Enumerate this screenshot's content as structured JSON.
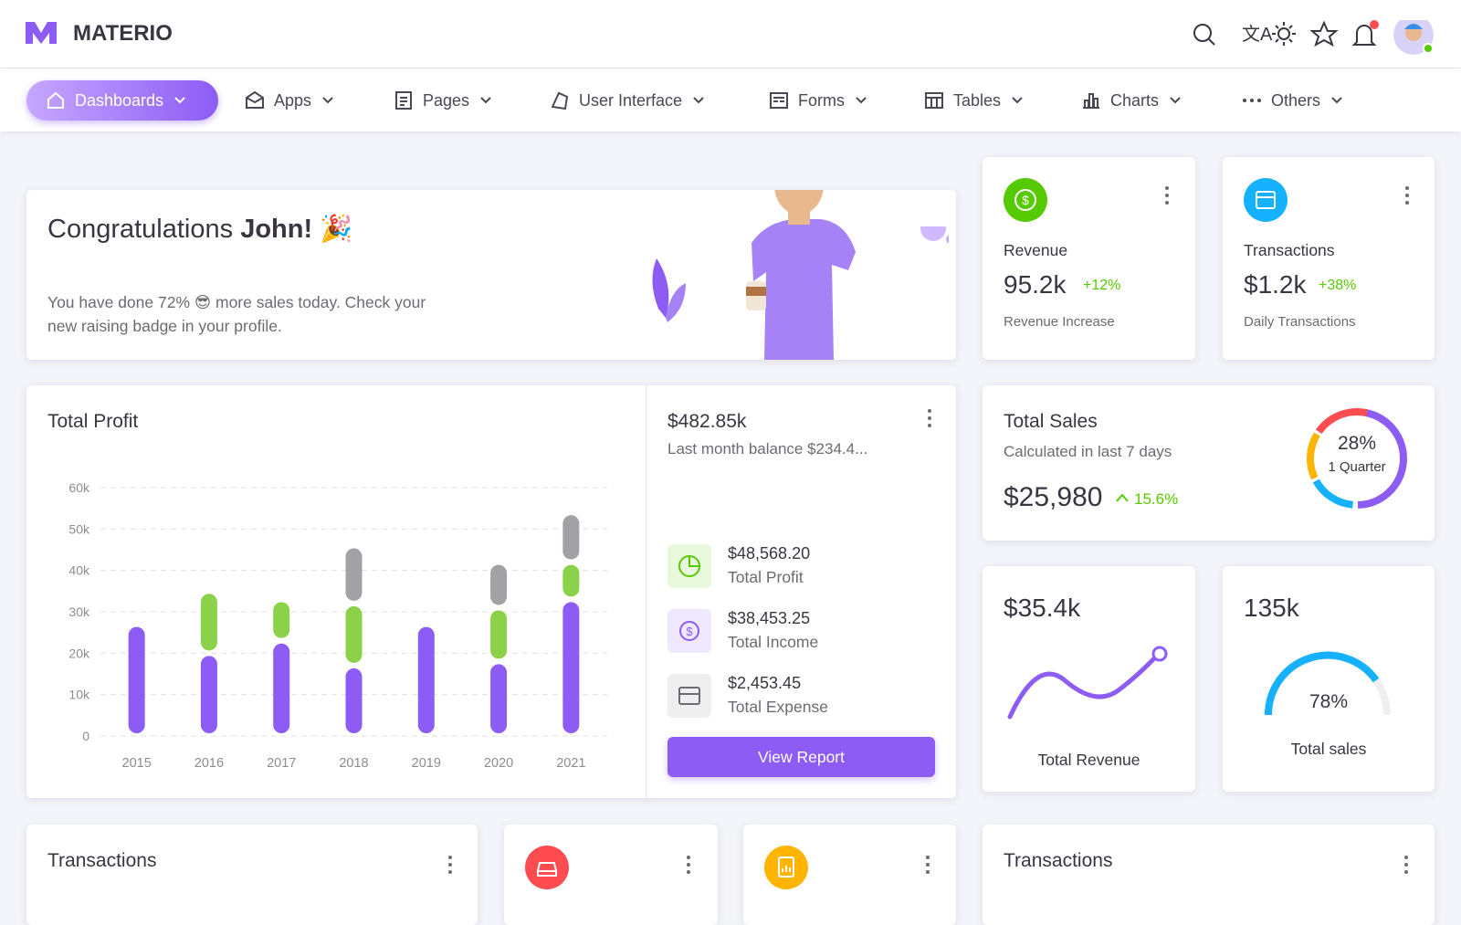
{
  "brand": "MATERIO",
  "nav": [
    "Dashboards",
    "Apps",
    "Pages",
    "User Interface",
    "Forms",
    "Tables",
    "Charts",
    "Others"
  ],
  "welcome": {
    "title_prefix": "Congratulations",
    "title_name": "John!",
    "text": "You have done 72% 😎 more sales today. Check your new raising badge in your profile."
  },
  "stat_cards": [
    {
      "title": "Revenue",
      "value": "95.2k",
      "change": "+12%",
      "subtitle": "Revenue Increase"
    },
    {
      "title": "Transactions",
      "value": "$1.2k",
      "change": "+38%",
      "subtitle": "Daily Transactions"
    }
  ],
  "total_profit": {
    "title": "Total Profit",
    "chart": {
      "type": "bar",
      "stacked": true,
      "categories": [
        "2015",
        "2016",
        "2017",
        "2018",
        "2019",
        "2020",
        "2021"
      ],
      "series": [
        {
          "color": "#8c5cf5",
          "values": [
            27,
            20,
            23,
            17,
            27,
            18,
            33
          ]
        },
        {
          "color": "#8bd14a",
          "values": [
            0,
            15,
            10,
            15,
            0,
            13,
            9
          ]
        },
        {
          "color": "#a1a1a6",
          "values": [
            0,
            0,
            0,
            14,
            0,
            11,
            12
          ]
        }
      ],
      "ylim": [
        0,
        60
      ],
      "yticks": [
        0,
        {
          "value": 10,
          "label": "10k"
        },
        {
          "value": 20,
          "label": "20k"
        },
        {
          "value": 30,
          "label": "30k"
        },
        {
          "value": 40,
          "label": "40k"
        },
        {
          "value": 50,
          "label": "50k"
        },
        {
          "value": 60,
          "label": "60k"
        }
      ],
      "grid": true
    },
    "balance": "$482.85k",
    "balance_note": "Last month balance $234.4...",
    "items": [
      {
        "amount": "$48,568.20",
        "label": "Total Profit"
      },
      {
        "amount": "$38,453.25",
        "label": "Total Income"
      },
      {
        "amount": "$2,453.45",
        "label": "Total Expense"
      }
    ],
    "button": "View Report"
  },
  "total_sales": {
    "title": "Total Sales",
    "subtitle": "Calculated in last 7 days",
    "value": "$25,980",
    "change": "15.6%",
    "donut_value": "28%",
    "donut_label": "1 Quarter"
  },
  "revenue_card": {
    "value": "$35.4k",
    "label": "Total Revenue"
  },
  "sales_card": {
    "value": "135k",
    "gauge_value": "78%",
    "label": "Total sales"
  },
  "bottom_titles": [
    "Transactions",
    "Transactions"
  ]
}
